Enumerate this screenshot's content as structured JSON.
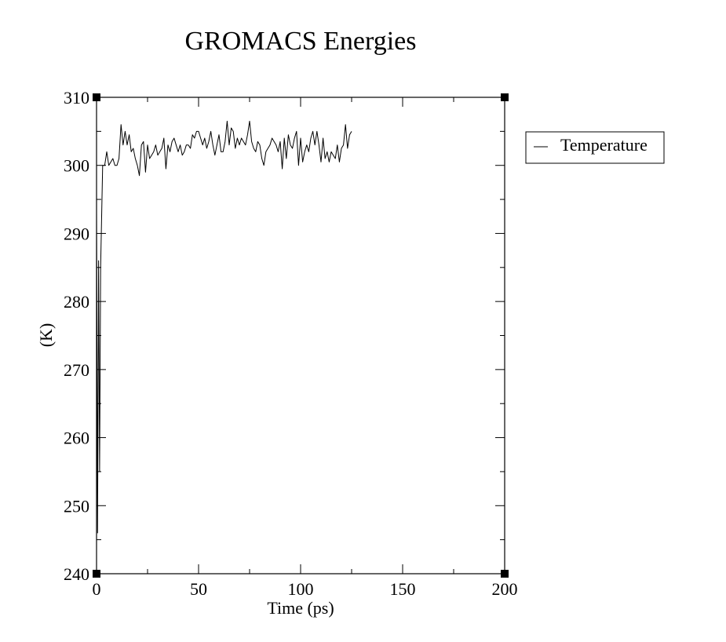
{
  "chart_data": {
    "type": "line",
    "title": "GROMACS Energies",
    "xlabel": "Time (ps)",
    "ylabel": "(K)",
    "xlim": [
      0,
      200
    ],
    "ylim": [
      240,
      310
    ],
    "xticks": [
      0,
      50,
      100,
      150,
      200
    ],
    "yticks": [
      240,
      250,
      260,
      270,
      280,
      290,
      300,
      310
    ],
    "grid": false,
    "legend_position": "right",
    "series": [
      {
        "name": "Temperature",
        "color": "#000000",
        "x": [
          0,
          0.5,
          1,
          1.5,
          2,
          3,
          4,
          5,
          6,
          7,
          8,
          9,
          10,
          11,
          12,
          13,
          14,
          15,
          16,
          17,
          18,
          19,
          20,
          21,
          22,
          23,
          24,
          25,
          26,
          27,
          28,
          29,
          30,
          31,
          32,
          33,
          34,
          35,
          36,
          37,
          38,
          39,
          40,
          41,
          42,
          43,
          44,
          45,
          46,
          47,
          48,
          49,
          50,
          51,
          52,
          53,
          54,
          55,
          56,
          57,
          58,
          59,
          60,
          61,
          62,
          63,
          64,
          65,
          66,
          67,
          68,
          69,
          70,
          71,
          72,
          73,
          74,
          75,
          76,
          77,
          78,
          79,
          80,
          81,
          82,
          83,
          84,
          85,
          86,
          87,
          88,
          89,
          90,
          91,
          92,
          93,
          94,
          95,
          96,
          97,
          98,
          99,
          100,
          101,
          102,
          103,
          104,
          105,
          106,
          107,
          108,
          109,
          110,
          111,
          112,
          113,
          114,
          115,
          116,
          117,
          118,
          119,
          120,
          121,
          122,
          123,
          124,
          125
        ],
        "y": [
          293,
          246,
          286,
          255,
          285,
          300,
          300,
          302,
          300,
          300.5,
          301,
          300,
          300,
          301,
          306,
          303,
          305,
          303,
          304.5,
          302,
          302.5,
          301,
          300,
          298.5,
          303,
          303.5,
          299,
          303,
          301,
          301.5,
          302,
          303,
          301.5,
          302,
          302.5,
          304,
          299.5,
          303,
          302,
          303.5,
          304,
          303,
          302,
          303,
          301.5,
          302,
          303,
          303,
          302.5,
          304.5,
          304,
          305,
          305,
          304,
          303,
          304,
          302.5,
          303.5,
          305,
          303,
          301.5,
          303,
          304.5,
          302,
          302,
          303.5,
          306.5,
          303,
          305.5,
          305,
          302.5,
          304,
          303,
          304,
          303.5,
          303,
          304.5,
          306.5,
          303.5,
          302.5,
          302,
          303.5,
          303,
          301,
          300,
          302,
          302.5,
          303,
          304,
          303.5,
          303,
          302,
          303.5,
          299.5,
          304,
          301,
          304.5,
          303,
          302.5,
          304,
          305,
          300,
          304,
          300.5,
          302,
          303,
          302,
          304,
          305,
          303,
          305,
          303,
          300.5,
          304,
          301,
          302,
          300.5,
          302,
          301.5,
          301,
          303,
          300.5,
          302.5,
          303,
          306,
          302.5,
          304.5,
          305
        ]
      }
    ]
  }
}
